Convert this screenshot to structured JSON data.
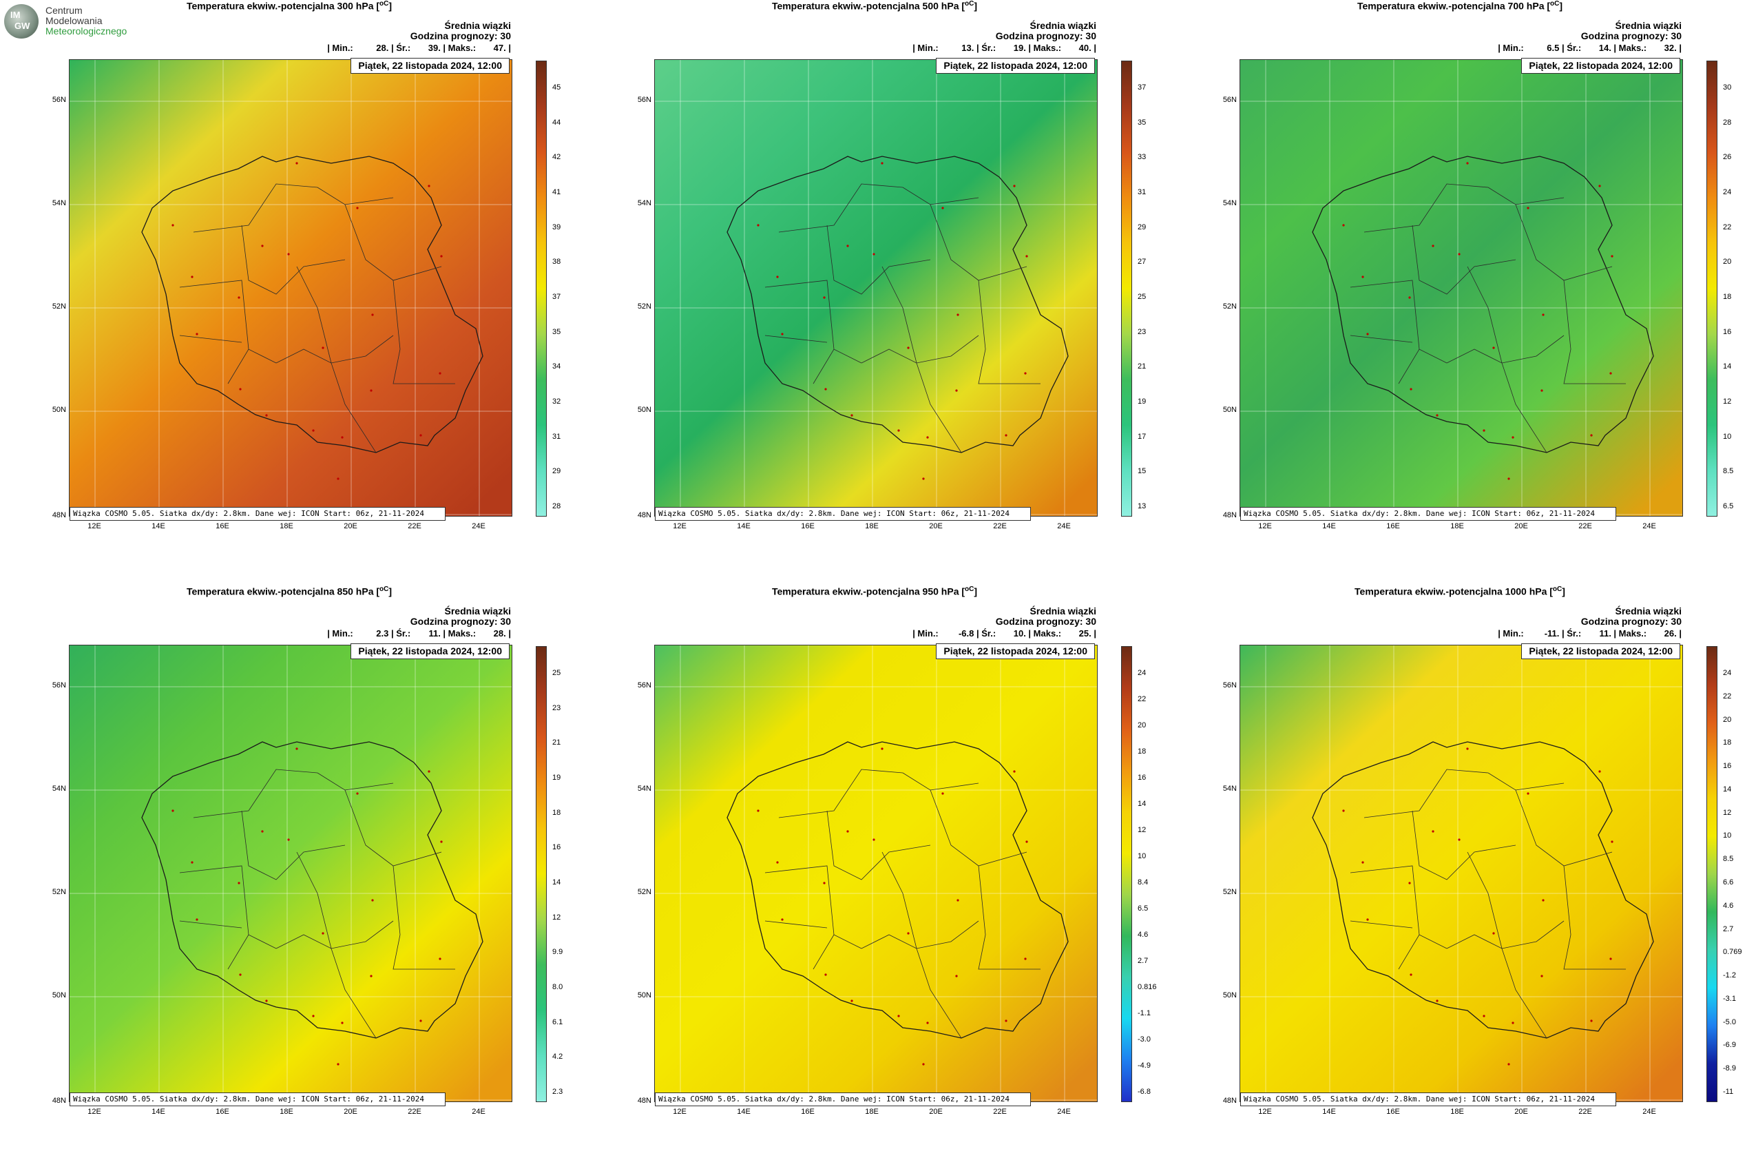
{
  "logo": {
    "initials_top": "IM",
    "initials_bottom": "GW",
    "line1": "Centrum",
    "line2": "Modelowania",
    "line3": "Meteorologicznego"
  },
  "common": {
    "info_title": "Średnia wiązki",
    "info_hour": "Godzina prognozy: 30",
    "date": "Piątek, 22 listopada 2024, 12:00",
    "footer": "Wiązka COSMO 5.05. Siatka dx/dy: 2.8km. Dane wej: ICON Start: 06z, 21-11-2024",
    "lat_labels": [
      "56N",
      "54N",
      "52N",
      "50N",
      "48N"
    ],
    "lon_labels": [
      "12E",
      "14E",
      "16E",
      "18E",
      "20E",
      "22E",
      "24E"
    ]
  },
  "panels": [
    {
      "title": "Temperatura ekwiw.-potencjalna 300 hPa [",
      "unit": "oC",
      "title_end": "]",
      "min": "28.",
      "avg": "39.",
      "max": "47.",
      "colorbar_labels": [
        "45",
        "44",
        "42",
        "41",
        "39",
        "38",
        "37",
        "35",
        "34",
        "32",
        "31",
        "29",
        "28"
      ]
    },
    {
      "title": "Temperatura ekwiw.-potencjalna 500 hPa [",
      "unit": "oC",
      "title_end": "]",
      "min": "13.",
      "avg": "19.",
      "max": "40.",
      "colorbar_labels": [
        "37",
        "35",
        "33",
        "31",
        "29",
        "27",
        "25",
        "23",
        "21",
        "19",
        "17",
        "15",
        "13"
      ]
    },
    {
      "title": "Temperatura ekwiw.-potencjalna 700 hPa [",
      "unit": "oC",
      "title_end": "]",
      "min": "6.5",
      "avg": "14.",
      "max": "32.",
      "colorbar_labels": [
        "30",
        "28",
        "26",
        "24",
        "22",
        "20",
        "18",
        "16",
        "14",
        "12",
        "10",
        "8.5",
        "6.5"
      ]
    },
    {
      "title": "Temperatura ekwiw.-potencjalna 850 hPa [",
      "unit": "oC",
      "title_end": "]",
      "min": "2.3",
      "avg": "11.",
      "max": "28.",
      "colorbar_labels": [
        "25",
        "23",
        "21",
        "19",
        "18",
        "16",
        "14",
        "12",
        "9.9",
        "8.0",
        "6.1",
        "4.2",
        "2.3"
      ]
    },
    {
      "title": "Temperatura ekwiw.-potencjalna 950 hPa [",
      "unit": "oC",
      "title_end": "]",
      "min": "-6.8",
      "avg": "10.",
      "max": "25.",
      "colorbar_labels": [
        "24",
        "22",
        "20",
        "18",
        "16",
        "14",
        "12",
        "10",
        "8.4",
        "6.5",
        "4.6",
        "2.7",
        "0.816",
        "-1.1",
        "-3.0",
        "-4.9",
        "-6.8"
      ]
    },
    {
      "title": "Temperatura ekwiw.-potencjalna 1000 hPa [",
      "unit": "oC",
      "title_end": "]",
      "min": "-11.",
      "avg": "11.",
      "max": "26.",
      "colorbar_labels": [
        "24",
        "22",
        "20",
        "18",
        "16",
        "14",
        "12",
        "10",
        "8.5",
        "6.6",
        "4.6",
        "2.7",
        "0.769",
        "-1.2",
        "-3.1",
        "-5.0",
        "-6.9",
        "-8.9",
        "-11"
      ]
    }
  ],
  "colors": {
    "red": "#c8401c",
    "orange": "#ea8a12",
    "yellow": "#f4e800",
    "green": "#2fb35a",
    "light_green": "#5dcf8a"
  }
}
